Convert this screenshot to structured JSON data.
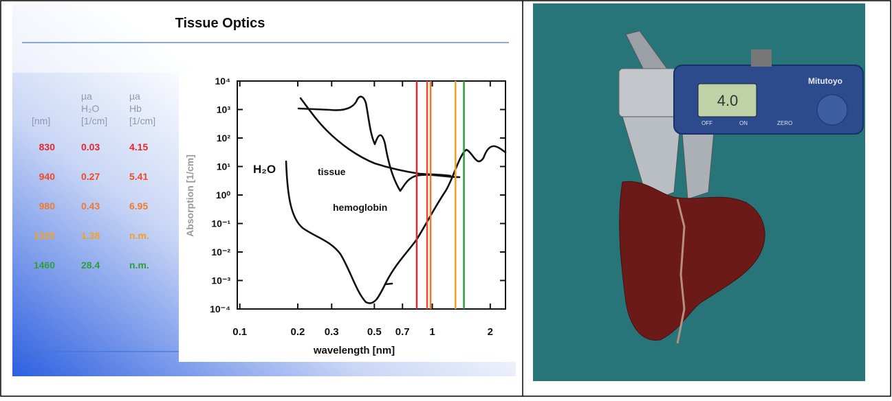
{
  "slide": {
    "title": "Tissue Optics",
    "table": {
      "header": [
        [
          "[nm]"
        ],
        [
          "µa",
          "H₂O",
          "[1/cm]"
        ],
        [
          "µa",
          "Hb",
          "[1/cm]"
        ]
      ],
      "rows": [
        [
          "830",
          "0.03",
          "4.15"
        ],
        [
          "940",
          "0.27",
          "5.41"
        ],
        [
          "980",
          "0.43",
          "6.95"
        ],
        [
          "1320",
          "1.38",
          "n.m."
        ],
        [
          "1460",
          "28.4",
          "n.m."
        ]
      ],
      "row_colors": [
        "#e8262a",
        "#f04a22",
        "#f07a2e",
        "#f5a020",
        "#2e9e3a"
      ]
    }
  },
  "chart": {
    "y_label": "Absorption [1/cm]",
    "x_label": "wavelength [nm]",
    "log_x": true,
    "log_y": true,
    "xlim": [
      0.097,
      2.4
    ],
    "ylim": [
      0.0001,
      10000
    ],
    "xticks": [
      0.1,
      0.2,
      0.3,
      0.5,
      0.7,
      1,
      2
    ],
    "yticks": [
      {
        "value": 10000,
        "label": "10⁴"
      },
      {
        "value": 1000,
        "label": "10³"
      },
      {
        "value": 100,
        "label": "10²"
      },
      {
        "value": 10,
        "label": "10¹"
      },
      {
        "value": 1,
        "label": "10⁰"
      },
      {
        "value": 0.1,
        "label": "10⁻¹"
      },
      {
        "value": 0.01,
        "label": "10⁻²"
      },
      {
        "value": 0.001,
        "label": "10⁻³"
      },
      {
        "value": 0.0001,
        "label": "10⁻⁴"
      }
    ],
    "curve_labels": [
      "H₂O",
      "tissue",
      "hemoglobin"
    ],
    "markers": {
      "x": [
        0.83,
        0.94,
        0.98,
        1.32,
        1.46
      ],
      "colors": [
        "#e8262a",
        "#f04a22",
        "#f07a2e",
        "#f5a020",
        "#2e9e3a"
      ]
    }
  },
  "photo": {
    "display": "4.0",
    "brand": "Mitutoyo",
    "buttons": [
      "OFF",
      "ON",
      "ZERO"
    ]
  }
}
